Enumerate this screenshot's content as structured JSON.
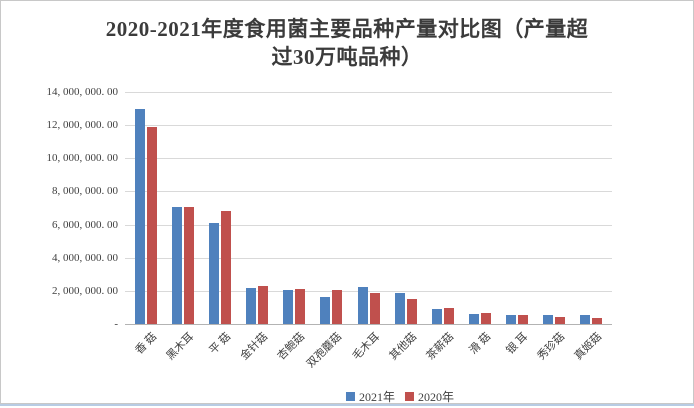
{
  "chart": {
    "title_line1": "2020-2021年度食用菌主要品种产量对比图（产量超",
    "title_line2": "过30万吨品种）",
    "colors": {
      "series_2021": "#4F81BD",
      "series_2020": "#C0504D",
      "gridline": "#D9D9D9",
      "axis_line": "#B3B3B3",
      "text": "#404040",
      "frame_border": "#C8C8C8",
      "bottom_rule": "#B8CCE4"
    }
  },
  "chart_data": {
    "type": "bar",
    "title": "2020-2021年度食用菌主要品种产量对比图（产量超过30万吨品种）",
    "categories": [
      "香 菇",
      "黑木耳",
      "平 菇",
      "金针菇",
      "杏鲍菇",
      "双孢蘑菇",
      "毛木耳",
      "其他菇",
      "茶薪菇",
      "滑 菇",
      "银 耳",
      "秀珍菇",
      "真姬菇"
    ],
    "series": [
      {
        "name": "2021年",
        "color": "#4F81BD",
        "values": [
          12950000,
          7060000,
          6090000,
          2160000,
          2050000,
          1640000,
          2230000,
          1870000,
          900000,
          620000,
          530000,
          550000,
          540000
        ]
      },
      {
        "name": "2020年",
        "color": "#C0504D",
        "values": [
          11880000,
          7070000,
          6820000,
          2280000,
          2110000,
          2060000,
          1870000,
          1490000,
          950000,
          670000,
          560000,
          420000,
          390000
        ]
      }
    ],
    "xlabel": "",
    "ylabel": "",
    "ylim": [
      0,
      14000000
    ],
    "ytick_step": 2000000,
    "ytick_labels_top_down": [
      "14, 000, 000. 00",
      "12, 000, 000. 00",
      "10, 000, 000. 00",
      "8, 000, 000. 00",
      "6, 000, 000. 00",
      "4, 000, 000. 00",
      "2, 000, 000. 00",
      "-"
    ],
    "grid": true,
    "legend_position": "bottom-center"
  }
}
